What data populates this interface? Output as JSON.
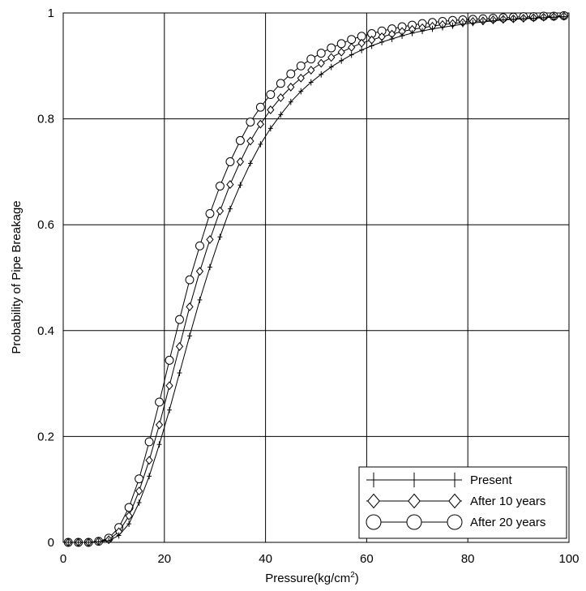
{
  "chart_data": {
    "type": "line",
    "title": "",
    "xlabel": "Pressure(kg/cm",
    "xlabel_sup": "2",
    "xlabel_end": ")",
    "ylabel": "Probability of Pipe Breakage",
    "xlim": [
      0,
      100
    ],
    "ylim": [
      0,
      1
    ],
    "xticks": [
      0,
      20,
      40,
      60,
      80,
      100
    ],
    "yticks": [
      0,
      0.2,
      0.4,
      0.6,
      0.8,
      1
    ],
    "xtick_labels": [
      "0",
      "20",
      "40",
      "60",
      "80",
      "100"
    ],
    "ytick_labels": [
      "0",
      "0.2",
      "0.4",
      "0.6",
      "0.8",
      "1"
    ],
    "grid": true,
    "legend_position": "bottom-right",
    "series": [
      {
        "name": "Present",
        "marker": "plus",
        "x": [
          1,
          3,
          5,
          7,
          9,
          11,
          13,
          15,
          17,
          19,
          21,
          23,
          25,
          27,
          29,
          31,
          33,
          35,
          37,
          39,
          41,
          43,
          45,
          47,
          49,
          51,
          53,
          55,
          57,
          59,
          61,
          63,
          65,
          67,
          69,
          71,
          73,
          75,
          77,
          79,
          81,
          83,
          85,
          87,
          89,
          91,
          93,
          95,
          97,
          99
        ],
        "y": [
          0.0,
          0.0,
          0.0,
          0.001,
          0.003,
          0.013,
          0.035,
          0.075,
          0.125,
          0.185,
          0.25,
          0.32,
          0.39,
          0.458,
          0.52,
          0.577,
          0.63,
          0.675,
          0.716,
          0.752,
          0.782,
          0.808,
          0.832,
          0.852,
          0.869,
          0.884,
          0.898,
          0.91,
          0.921,
          0.93,
          0.938,
          0.945,
          0.951,
          0.957,
          0.962,
          0.966,
          0.97,
          0.973,
          0.976,
          0.979,
          0.981,
          0.983,
          0.985,
          0.987,
          0.988,
          0.989,
          0.99,
          0.991,
          0.992,
          0.993
        ]
      },
      {
        "name": "After 10 years",
        "marker": "diamond",
        "x": [
          1,
          3,
          5,
          7,
          9,
          11,
          13,
          15,
          17,
          19,
          21,
          23,
          25,
          27,
          29,
          31,
          33,
          35,
          37,
          39,
          41,
          43,
          45,
          47,
          49,
          51,
          53,
          55,
          57,
          59,
          61,
          63,
          65,
          67,
          69,
          71,
          73,
          75,
          77,
          79,
          81,
          83,
          85,
          87,
          89,
          91,
          93,
          95,
          97,
          99
        ],
        "y": [
          0.0,
          0.0,
          0.0,
          0.002,
          0.005,
          0.02,
          0.05,
          0.097,
          0.155,
          0.222,
          0.296,
          0.37,
          0.445,
          0.512,
          0.572,
          0.626,
          0.676,
          0.719,
          0.758,
          0.79,
          0.817,
          0.84,
          0.86,
          0.877,
          0.892,
          0.905,
          0.916,
          0.926,
          0.935,
          0.943,
          0.949,
          0.955,
          0.96,
          0.965,
          0.969,
          0.972,
          0.975,
          0.978,
          0.98,
          0.982,
          0.984,
          0.985,
          0.987,
          0.988,
          0.989,
          0.99,
          0.991,
          0.992,
          0.993,
          0.994
        ]
      },
      {
        "name": "After 20 years",
        "marker": "circle",
        "x": [
          1,
          3,
          5,
          7,
          9,
          11,
          13,
          15,
          17,
          19,
          21,
          23,
          25,
          27,
          29,
          31,
          33,
          35,
          37,
          39,
          41,
          43,
          45,
          47,
          49,
          51,
          53,
          55,
          57,
          59,
          61,
          63,
          65,
          67,
          69,
          71,
          73,
          75,
          77,
          79,
          81,
          83,
          85,
          87,
          89,
          91,
          93,
          95,
          97,
          99
        ],
        "y": [
          0.0,
          0.0,
          0.0,
          0.002,
          0.008,
          0.028,
          0.066,
          0.12,
          0.19,
          0.265,
          0.344,
          0.421,
          0.496,
          0.56,
          0.621,
          0.673,
          0.719,
          0.759,
          0.794,
          0.822,
          0.846,
          0.867,
          0.885,
          0.9,
          0.913,
          0.924,
          0.934,
          0.942,
          0.95,
          0.956,
          0.961,
          0.966,
          0.97,
          0.974,
          0.977,
          0.98,
          0.982,
          0.984,
          0.986,
          0.987,
          0.988,
          0.989,
          0.99,
          0.991,
          0.992,
          0.993,
          0.993,
          0.994,
          0.994,
          0.995
        ]
      }
    ]
  }
}
